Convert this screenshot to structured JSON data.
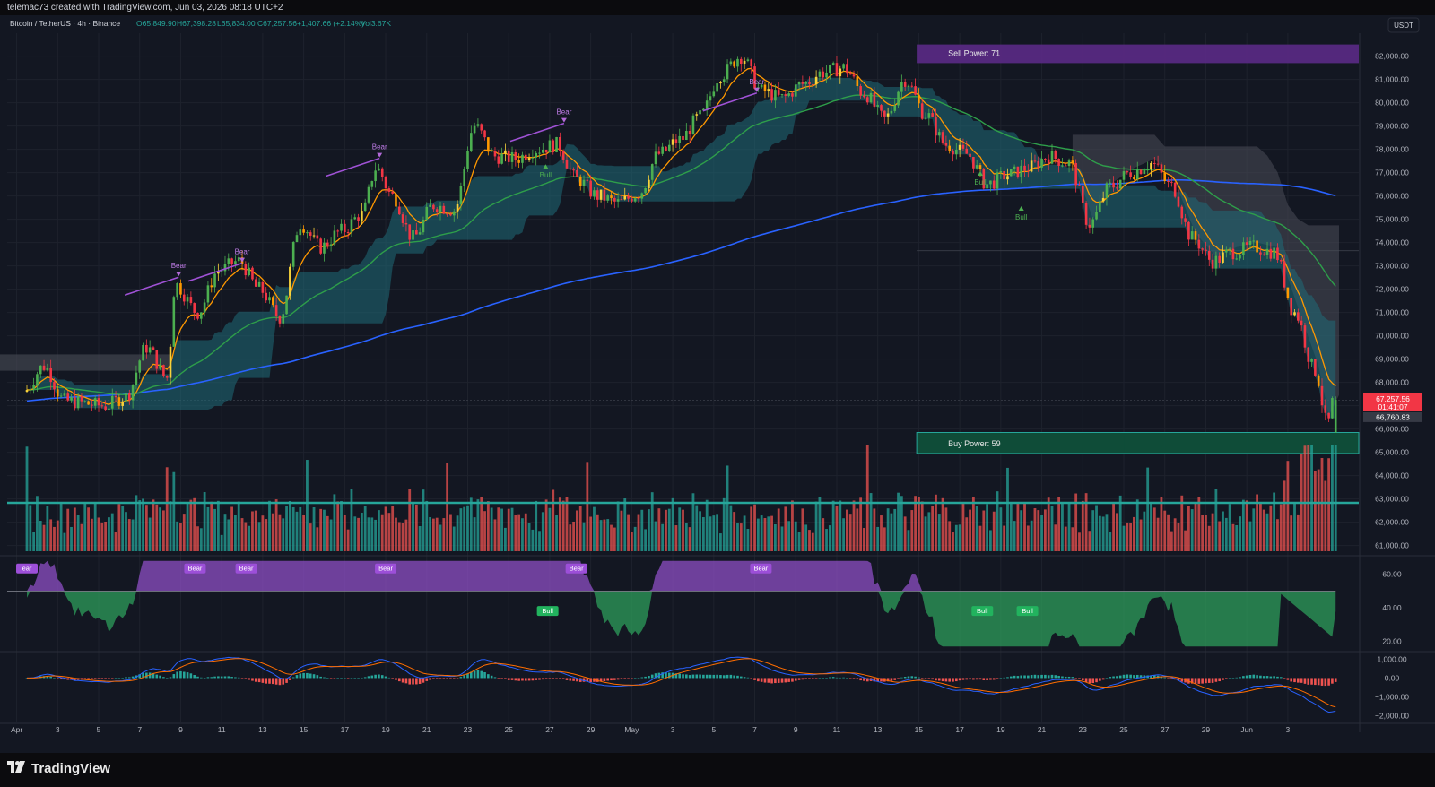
{
  "header": {
    "author_line": "telemac73 created with TradingView.com, Jun 03, 2026 08:18 UTC+2"
  },
  "legend": {
    "symbol": "Bitcoin / TetherUS · 4h · Binance",
    "open": "O65,849.90",
    "high": "H67,398.28",
    "low": "L65,834.00",
    "close": "C67,257.56",
    "change": "+1,407.66 (+2.14%)",
    "volume": "Vol3.67K"
  },
  "currency_badge": "USDT",
  "brand": {
    "name": "TradingView",
    "logo": "tradingview-logo"
  },
  "colors": {
    "background": "#131722",
    "grid": "#1e222d",
    "up": "#26a69a",
    "down": "#ef5350",
    "candle_up": "#4caf50",
    "candle_down": "#f23645",
    "cloud": "#1f6b78",
    "ma_green": "#2e9e4a",
    "ma_blue": "#2962ff",
    "ma_orange": "#ff9800",
    "purple": "#9c27b0"
  },
  "zones": {
    "sell": {
      "label": "Sell Power: 71",
      "price_low": 81700,
      "price_high": 82500
    },
    "buy": {
      "label": "Buy Power: 59",
      "price_low": 64950,
      "price_high": 65850
    }
  },
  "price_tags": {
    "last_price": "67,257.56",
    "countdown": "01:41:07",
    "secondary": "66,760.83"
  },
  "chart_data": [
    {
      "type": "candlestick",
      "pane": "price",
      "timeframe": "4h",
      "y_axis": {
        "min": 60600,
        "max": 82600,
        "ticks": [
          61000,
          62000,
          63000,
          64000,
          65000,
          66000,
          67000,
          68000,
          69000,
          70000,
          71000,
          72000,
          73000,
          74000,
          75000,
          76000,
          77000,
          78000,
          79000,
          80000,
          81000,
          82000
        ],
        "tick_labels": [
          "61,000.00",
          "62,000.00",
          "63,000.00",
          "64,000.00",
          "65,000.00",
          "66,000.00",
          "67,000.00",
          "68,000.00",
          "69,000.00",
          "70,000.00",
          "71,000.00",
          "72,000.00",
          "73,000.00",
          "74,000.00",
          "75,000.00",
          "76,000.00",
          "77,000.00",
          "78,000.00",
          "79,000.00",
          "80,000.00",
          "81,000.00",
          "82,000.00"
        ]
      },
      "x_axis": {
        "tick_labels": [
          "Apr",
          "3",
          "5",
          "7",
          "9",
          "11",
          "13",
          "15",
          "17",
          "19",
          "21",
          "23",
          "25",
          "27",
          "29",
          "May",
          "3",
          "5",
          "7",
          "9",
          "11",
          "13",
          "15",
          "17",
          "19",
          "21",
          "23",
          "25",
          "27",
          "29",
          "Jun",
          "3"
        ]
      },
      "close_path_anchors": [
        {
          "day": 0,
          "price": 67600
        },
        {
          "day": 1,
          "price": 68700
        },
        {
          "day": 2,
          "price": 67200
        },
        {
          "day": 4,
          "price": 67000
        },
        {
          "day": 5,
          "price": 67400
        },
        {
          "day": 6,
          "price": 69500
        },
        {
          "day": 7,
          "price": 68200
        },
        {
          "day": 7.4,
          "price": 72200
        },
        {
          "day": 8.5,
          "price": 71000
        },
        {
          "day": 9.5,
          "price": 72800
        },
        {
          "day": 10.5,
          "price": 73200
        },
        {
          "day": 11.5,
          "price": 72000
        },
        {
          "day": 12.5,
          "price": 70800
        },
        {
          "day": 13.5,
          "price": 74800
        },
        {
          "day": 14.5,
          "price": 73800
        },
        {
          "day": 15.5,
          "price": 74500
        },
        {
          "day": 16.5,
          "price": 75200
        },
        {
          "day": 17.2,
          "price": 77200
        },
        {
          "day": 18,
          "price": 76000
        },
        {
          "day": 19,
          "price": 74200
        },
        {
          "day": 20,
          "price": 75600
        },
        {
          "day": 21,
          "price": 75400
        },
        {
          "day": 22,
          "price": 79000
        },
        {
          "day": 23,
          "price": 77700
        },
        {
          "day": 24,
          "price": 77600
        },
        {
          "day": 25,
          "price": 78000
        },
        {
          "day": 26,
          "price": 78200
        },
        {
          "day": 27,
          "price": 76700
        },
        {
          "day": 28,
          "price": 76000
        },
        {
          "day": 29,
          "price": 75700
        },
        {
          "day": 30,
          "price": 76100
        },
        {
          "day": 31,
          "price": 77800
        },
        {
          "day": 32,
          "price": 78400
        },
        {
          "day": 33,
          "price": 79400
        },
        {
          "day": 34,
          "price": 81200
        },
        {
          "day": 35,
          "price": 82000
        },
        {
          "day": 36,
          "price": 80500
        },
        {
          "day": 37,
          "price": 80200
        },
        {
          "day": 38,
          "price": 80800
        },
        {
          "day": 39,
          "price": 81300
        },
        {
          "day": 40,
          "price": 81500
        },
        {
          "day": 41,
          "price": 80400
        },
        {
          "day": 42,
          "price": 79300
        },
        {
          "day": 43,
          "price": 81000
        },
        {
          "day": 44,
          "price": 79500
        },
        {
          "day": 45,
          "price": 78200
        },
        {
          "day": 46,
          "price": 77800
        },
        {
          "day": 47,
          "price": 76500
        },
        {
          "day": 48,
          "price": 76900
        },
        {
          "day": 49,
          "price": 77200
        },
        {
          "day": 50,
          "price": 77700
        },
        {
          "day": 51,
          "price": 77400
        },
        {
          "day": 52,
          "price": 74800
        },
        {
          "day": 53,
          "price": 76400
        },
        {
          "day": 54,
          "price": 77000
        },
        {
          "day": 55,
          "price": 77400
        },
        {
          "day": 56,
          "price": 76400
        },
        {
          "day": 57,
          "price": 74200
        },
        {
          "day": 58,
          "price": 73200
        },
        {
          "day": 59,
          "price": 73600
        },
        {
          "day": 60,
          "price": 73800
        },
        {
          "day": 61,
          "price": 73600
        },
        {
          "day": 62,
          "price": 71000
        },
        {
          "day": 63,
          "price": 68500
        },
        {
          "day": 63.6,
          "price": 66200
        },
        {
          "day": 63.9,
          "price": 67257
        }
      ],
      "overlays": [
        {
          "name": "ema-orange",
          "kind": "fast moving average"
        },
        {
          "name": "ma-green",
          "kind": "medium moving average"
        },
        {
          "name": "ma-blue",
          "kind": "slow moving average"
        },
        {
          "name": "cloud",
          "kind": "trailing band"
        }
      ],
      "signals": [
        {
          "label": "Bear",
          "day": 7.4,
          "price": 72900
        },
        {
          "label": "Bear",
          "day": 10.5,
          "price": 73500
        },
        {
          "label": "Bear",
          "day": 17.2,
          "price": 78000
        },
        {
          "label": "Bear",
          "day": 26.2,
          "price": 79500
        },
        {
          "label": "Bear",
          "day": 35.6,
          "price": 80800
        },
        {
          "label": "Bull",
          "day": 25.3,
          "price": 77400
        },
        {
          "label": "Bull",
          "day": 46.5,
          "price": 77100
        },
        {
          "label": "Bull",
          "day": 48.5,
          "price": 75600
        }
      ]
    },
    {
      "type": "bar",
      "pane": "volume",
      "colors": {
        "up": "#26a69a",
        "down": "#ef5350"
      }
    },
    {
      "type": "area",
      "pane": "rsi",
      "y_axis": {
        "ticks": [
          20,
          40,
          60
        ],
        "tick_labels": [
          "20.00",
          "40.00",
          "60.00"
        ],
        "range": [
          15,
          70
        ]
      },
      "midline": 50,
      "signals": [
        {
          "label": "Bear",
          "day": 8.2
        },
        {
          "label": "Bear",
          "day": 10.7
        },
        {
          "label": "Bear",
          "day": 17.5
        },
        {
          "label": "Bear",
          "day": 26.8
        },
        {
          "label": "Bear",
          "day": 35.8
        },
        {
          "label": "Bull",
          "day": 25.4
        },
        {
          "label": "Bull",
          "day": 46.6
        },
        {
          "label": "Bull",
          "day": 48.8
        },
        {
          "label": "ear",
          "day": 0
        }
      ]
    },
    {
      "type": "histogram",
      "pane": "macd",
      "y_axis": {
        "ticks": [
          1000,
          0,
          -1000,
          -2000
        ],
        "tick_labels": [
          "1,000.00",
          "0.00",
          "−1,000.00",
          "−2,000.00"
        ],
        "range": [
          -2300,
          1300
        ]
      }
    }
  ]
}
